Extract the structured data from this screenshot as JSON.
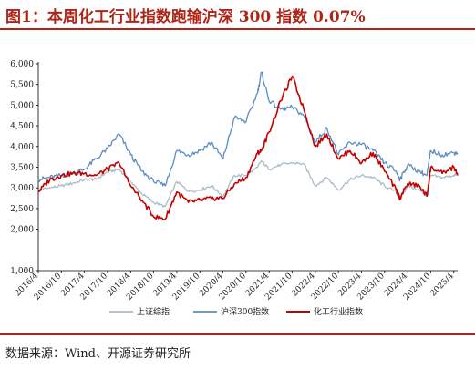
{
  "title": "图1：本周化工行业指数跑输沪深 300 指数 0.07%",
  "source": "数据来源：Wind、开源证券研究所",
  "chart_data": {
    "type": "line",
    "title": "",
    "xlabel": "",
    "ylabel": "",
    "ylim": [
      1000,
      6000
    ],
    "yticks": [
      "1,000",
      "2,000",
      "2,500",
      "3,000",
      "3,500",
      "4,000",
      "4,500",
      "5,000",
      "5,500",
      "6,000"
    ],
    "ytick_values": [
      1000,
      2000,
      2500,
      3000,
      3500,
      4000,
      4500,
      5000,
      5500,
      6000
    ],
    "xticks": [
      "2016/4",
      "2016/10",
      "2017/4",
      "2017/10",
      "2018/4",
      "2018/10",
      "2019/4",
      "2019/10",
      "2020/4",
      "2020/10",
      "2021/4",
      "2021/10",
      "2022/4",
      "2022/10",
      "2023/4",
      "2023/10",
      "2024/4",
      "2024/10",
      "2025/4"
    ],
    "x_range": [
      "2016/4",
      "2025/5"
    ],
    "grid": false,
    "legend_placement": "bottom",
    "x": [
      "2016/4",
      "2016/7",
      "2016/10",
      "2017/1",
      "2017/4",
      "2017/7",
      "2017/10",
      "2018/1",
      "2018/4",
      "2018/7",
      "2018/10",
      "2019/1",
      "2019/4",
      "2019/7",
      "2019/10",
      "2020/1",
      "2020/4",
      "2020/7",
      "2020/10",
      "2021/1",
      "2021/2",
      "2021/4",
      "2021/7",
      "2021/10",
      "2022/1",
      "2022/4",
      "2022/7",
      "2022/10",
      "2023/1",
      "2023/4",
      "2023/7",
      "2023/10",
      "2024/1",
      "2024/2",
      "2024/4",
      "2024/7",
      "2024/9",
      "2024/10",
      "2025/1",
      "2025/4",
      "2025/5"
    ],
    "series": [
      {
        "name": "上证综指",
        "color": "#a9bcc8",
        "values": [
          2950,
          3000,
          3050,
          3110,
          3200,
          3210,
          3380,
          3450,
          3150,
          2850,
          2650,
          2550,
          3150,
          2920,
          2950,
          3050,
          2800,
          3300,
          3300,
          3500,
          3650,
          3450,
          3560,
          3600,
          3580,
          3050,
          3250,
          2950,
          3200,
          3300,
          3250,
          3050,
          2900,
          2750,
          3050,
          2950,
          2800,
          3300,
          3250,
          3300,
          3350
        ]
      },
      {
        "name": "沪深300指数",
        "color": "#5b8cc4",
        "values": [
          3200,
          3250,
          3300,
          3350,
          3450,
          3700,
          3950,
          4300,
          3800,
          3400,
          3150,
          3050,
          3900,
          3800,
          3900,
          4100,
          3700,
          4700,
          4600,
          5300,
          5800,
          5100,
          4900,
          4950,
          4750,
          4100,
          4450,
          3800,
          4100,
          4050,
          3900,
          3600,
          3400,
          3200,
          3550,
          3400,
          3300,
          3900,
          3800,
          3850,
          3850
        ]
      },
      {
        "name": "化工行业指数",
        "color": "#c40000",
        "values": [
          2900,
          3200,
          3300,
          3350,
          3350,
          3300,
          3450,
          3600,
          3050,
          2700,
          2300,
          2250,
          2900,
          2650,
          2700,
          2750,
          2750,
          3100,
          3250,
          3850,
          3900,
          4350,
          5100,
          5700,
          4900,
          4000,
          4300,
          3700,
          3900,
          3600,
          3850,
          3400,
          2950,
          2750,
          3100,
          3050,
          2800,
          3500,
          3350,
          3500,
          3300
        ]
      }
    ]
  }
}
